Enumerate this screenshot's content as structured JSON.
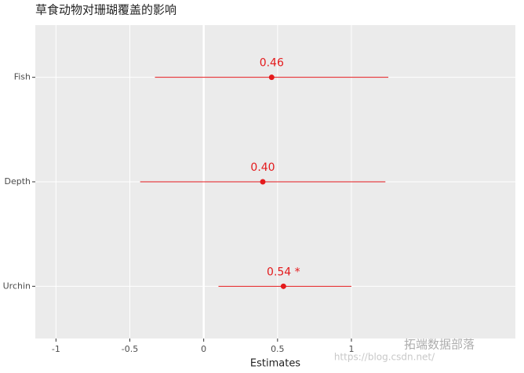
{
  "chart_data": {
    "type": "forest",
    "title": "草食动物对珊瑚覆盖的影响",
    "x_label": "Estimates",
    "categories": [
      "Fish",
      "Depth",
      "Urchin"
    ],
    "values": [
      0.46,
      0.4,
      0.54
    ],
    "value_labels": [
      "0.46",
      "0.40",
      "0.54 *"
    ],
    "lower": [
      -0.33,
      -0.43,
      0.1
    ],
    "upper": [
      1.25,
      1.23,
      1.0
    ],
    "color": "#e41a1c",
    "xlim": [
      -1.14,
      2.11
    ],
    "xticks": [
      -1,
      -0.5,
      0,
      0.5,
      1
    ],
    "grid": true
  },
  "watermark": {
    "brand": "拓端数据部落",
    "url": "https://blog.csdn.net/"
  }
}
